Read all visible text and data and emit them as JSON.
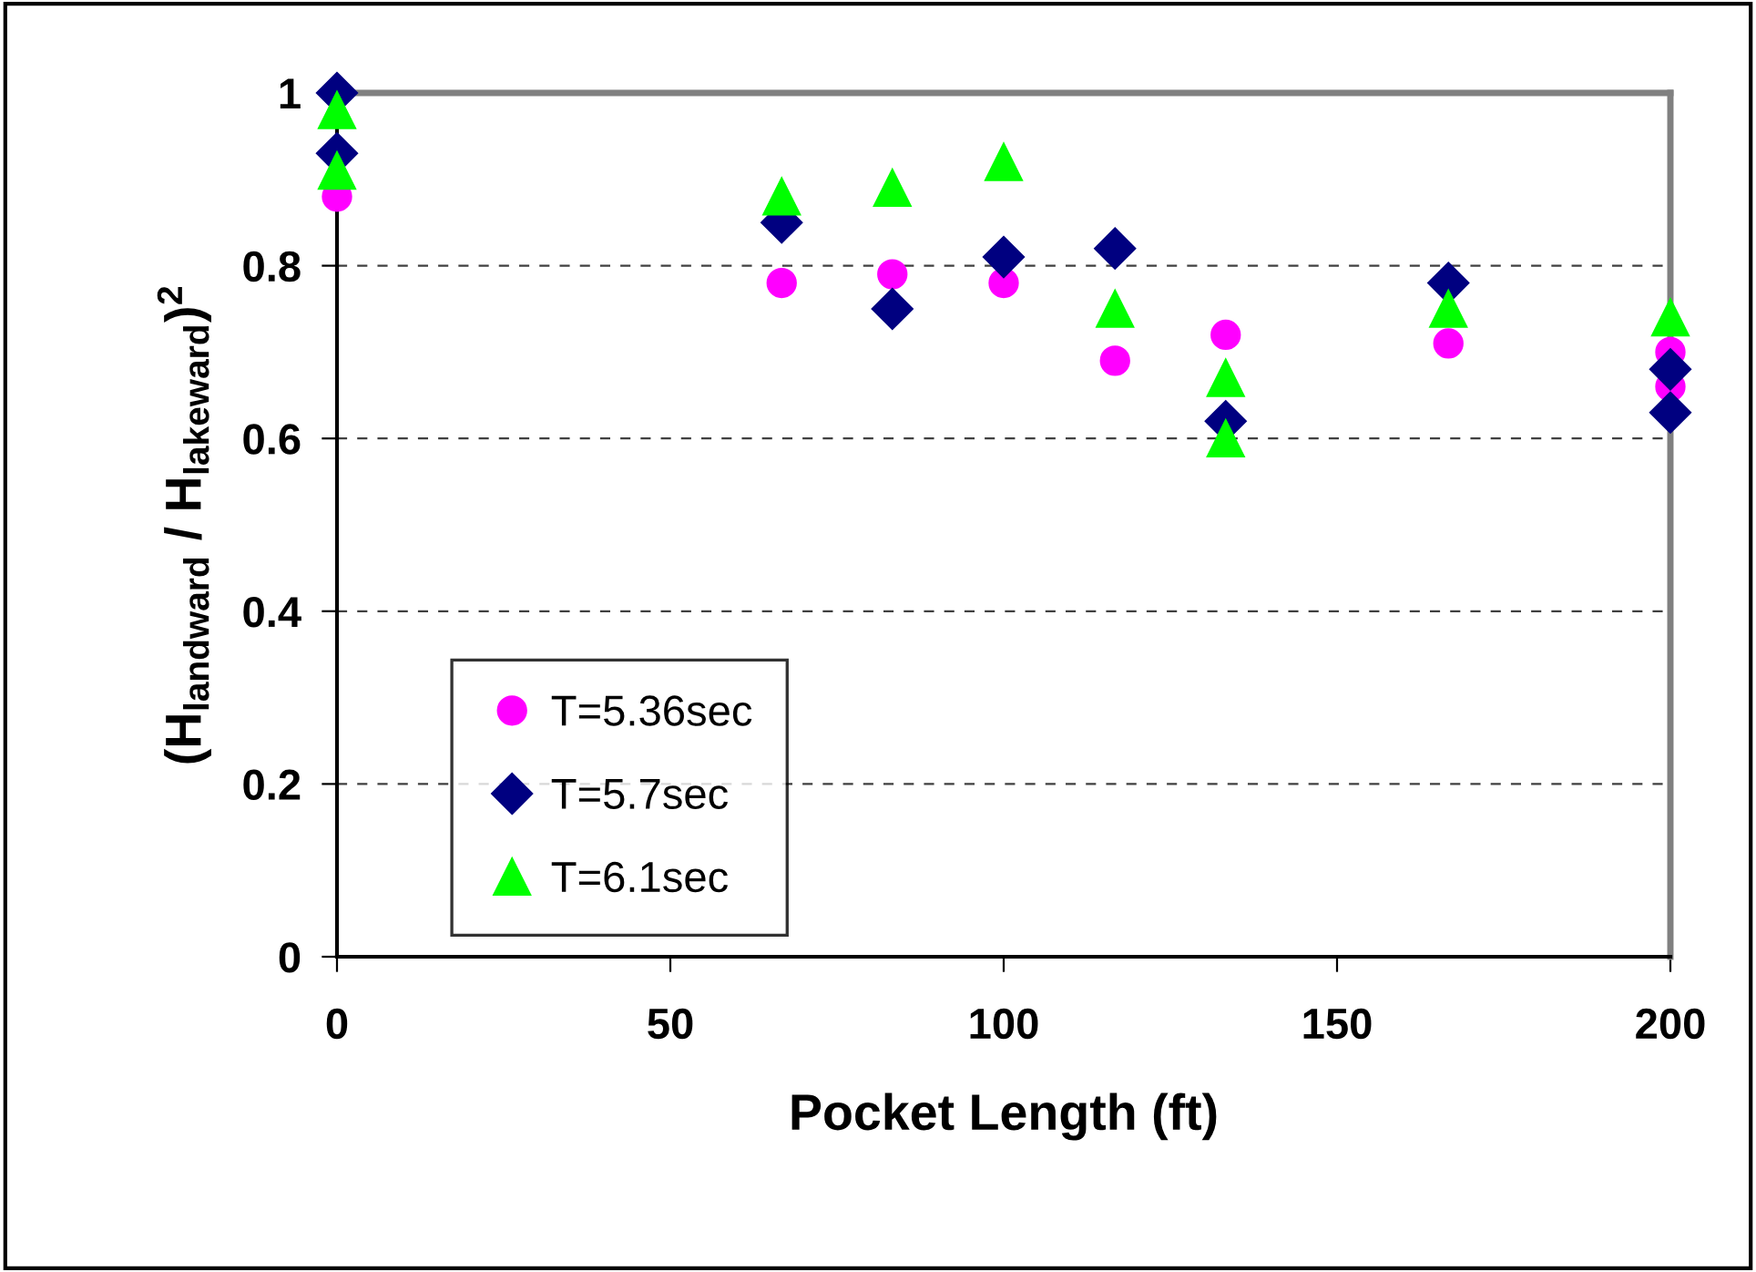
{
  "chart_data": {
    "type": "scatter",
    "xlabel": "Pocket Length (ft)",
    "ylabel": "(H$_{landward}$ / H$_{lakeward}$)$^{2}$",
    "xlim": [
      0,
      200
    ],
    "xticks": [
      0,
      50,
      100,
      150,
      200
    ],
    "ylim": [
      0,
      1
    ],
    "yticks": [
      0,
      0.2,
      0.4,
      0.6,
      0.8,
      1
    ],
    "grid": "y",
    "legend": "bottom left",
    "series": [
      {
        "name": "T=5.36sec",
        "color": "#ff00ff",
        "marker": "circle",
        "x": [
          0,
          66.7,
          83.3,
          100,
          116.7,
          133.3,
          166.7,
          200,
          200
        ],
        "values": [
          0.88,
          0.78,
          0.79,
          0.78,
          0.69,
          0.72,
          0.71,
          0.7,
          0.66
        ]
      },
      {
        "name": "T=5.7sec",
        "color": "#000080",
        "marker": "diamond",
        "x": [
          0,
          0,
          66.7,
          83.3,
          100,
          116.7,
          133.3,
          166.7,
          200,
          200
        ],
        "values": [
          1.0,
          0.93,
          0.85,
          0.75,
          0.81,
          0.82,
          0.62,
          0.78,
          0.68,
          0.63
        ]
      },
      {
        "name": "T=6.1sec",
        "color": "#00ff00",
        "marker": "triangle",
        "x": [
          0,
          0,
          66.7,
          83.3,
          100,
          116.7,
          133.3,
          133.3,
          166.7,
          200
        ],
        "values": [
          0.98,
          0.91,
          0.88,
          0.89,
          0.92,
          0.75,
          0.67,
          0.6,
          0.75,
          0.74
        ]
      }
    ]
  }
}
